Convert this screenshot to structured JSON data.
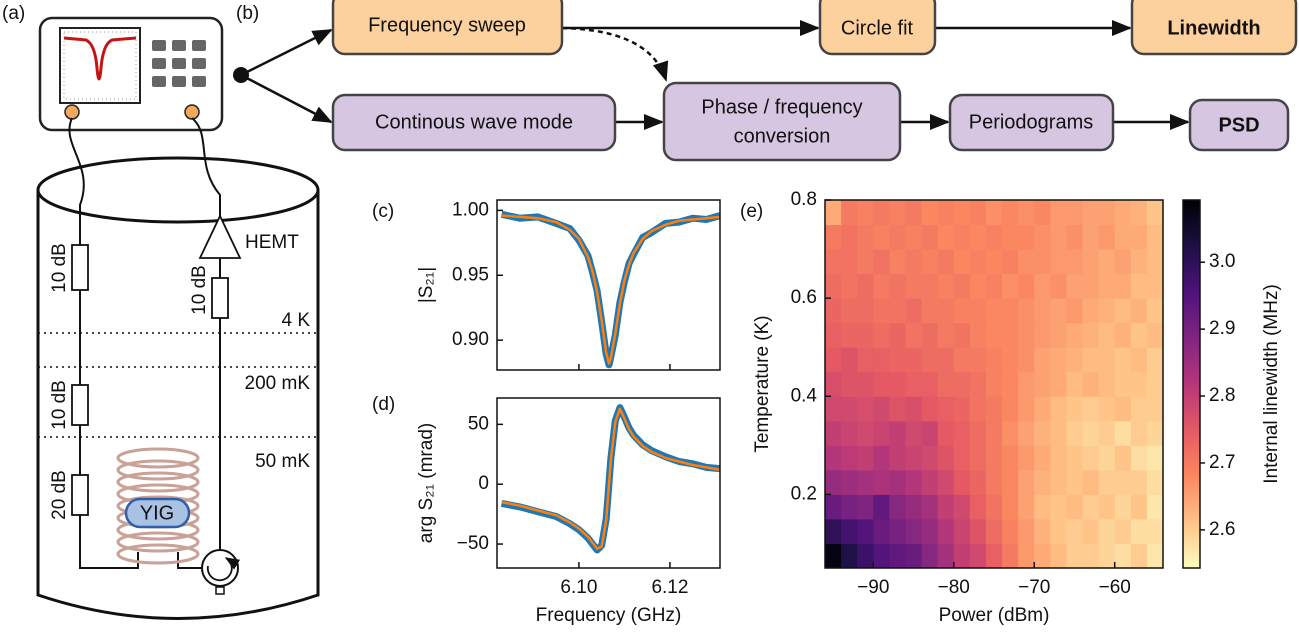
{
  "panel_labels": [
    "(a)",
    "(b)",
    "(c)",
    "(d)",
    "(e)"
  ],
  "setup": {
    "attenuators": [
      "10 dB",
      "10 dB",
      "20 dB",
      "10 dB"
    ],
    "amplifier": "HEMT",
    "stages": [
      "4 K",
      "200 mK",
      "50 mK"
    ],
    "sample": "YIG"
  },
  "flow": {
    "nodes": [
      {
        "label": "Frequency sweep"
      },
      {
        "label": "Circle fit"
      },
      {
        "label": "Linewidth"
      },
      {
        "label": "Continous wave mode"
      },
      {
        "lines": [
          "Phase / frequency",
          "conversion"
        ]
      },
      {
        "label": "Periodograms"
      },
      {
        "label": "PSD"
      }
    ]
  },
  "chart_data": [
    {
      "type": "line",
      "ylabel": "|S₂₁|",
      "x": [
        6.083,
        6.087,
        6.091,
        6.095,
        6.098,
        6.1,
        6.102,
        6.103,
        6.104,
        6.105,
        6.106,
        6.1066,
        6.107,
        6.108,
        6.109,
        6.11,
        6.111,
        6.112,
        6.114,
        6.116,
        6.119,
        6.122,
        6.125,
        6.128,
        6.131
      ],
      "xlim": [
        6.082,
        6.131
      ],
      "ylim": [
        0.877,
        1.008
      ],
      "yticks": [
        {
          "value": 0.9,
          "label": "0.90"
        },
        0.95,
        {
          "value": 1,
          "label": "1.00"
        }
      ],
      "series": [
        {
          "color": "#1f77b4",
          "values": [
            0.997,
            0.994,
            0.995,
            0.99,
            0.986,
            0.977,
            0.965,
            0.952,
            0.938,
            0.914,
            0.889,
            0.881,
            0.887,
            0.904,
            0.929,
            0.945,
            0.959,
            0.966,
            0.979,
            0.983,
            0.99,
            0.991,
            0.994,
            0.993,
            0.996
          ]
        },
        {
          "color": "#ff7f0e",
          "values": [
            0.996,
            0.995,
            0.994,
            0.991,
            0.985,
            0.978,
            0.964,
            0.953,
            0.937,
            0.915,
            0.89,
            0.882,
            0.886,
            0.905,
            0.928,
            0.946,
            0.958,
            0.967,
            0.978,
            0.984,
            0.989,
            0.992,
            0.993,
            0.994,
            0.995
          ]
        }
      ]
    },
    {
      "type": "line",
      "ylabel": "arg S₂₁ (mrad)",
      "xlabel": "Frequency (GHz)",
      "x": [
        6.083,
        6.087,
        6.091,
        6.095,
        6.098,
        6.1,
        6.102,
        6.103,
        6.104,
        6.105,
        6.106,
        6.1066,
        6.107,
        6.108,
        6.109,
        6.11,
        6.111,
        6.112,
        6.114,
        6.116,
        6.119,
        6.122,
        6.125,
        6.128,
        6.131
      ],
      "xlim": [
        6.082,
        6.131
      ],
      "ylim": [
        -70,
        72
      ],
      "xticks": [
        {
          "value": 6.1,
          "label": "6.10"
        },
        {
          "value": 6.12,
          "label": "6.12"
        }
      ],
      "yticks": [
        {
          "value": -50,
          "label": "−50"
        },
        0,
        50
      ],
      "series": [
        {
          "color": "#1f77b4",
          "values": [
            -16,
            -19,
            -23,
            -27,
            -33,
            -38,
            -45,
            -50,
            -55,
            -51,
            -29,
            1,
            21,
            53,
            64,
            56,
            47,
            41,
            33,
            28,
            23,
            19,
            17,
            14,
            13
          ]
        },
        {
          "color": "#ff7f0e",
          "values": [
            -15,
            -18,
            -22,
            -26,
            -32,
            -37,
            -44,
            -49,
            -54,
            -52,
            -30,
            0,
            20,
            52,
            63,
            55,
            46,
            40,
            32,
            27,
            22,
            19,
            16,
            14,
            12
          ]
        }
      ]
    },
    {
      "type": "heatmap",
      "xlabel": "Power (dBm)",
      "ylabel": "Temperature (K)",
      "colormap": "magma_r",
      "x": [
        -95,
        -93,
        -91,
        -89,
        -87,
        -85,
        -83,
        -81,
        -79,
        -77,
        -75,
        -73,
        -71,
        -69,
        -67,
        -65,
        -63,
        -61,
        -59,
        -57,
        -55
      ],
      "y": [
        0.075,
        0.125,
        0.175,
        0.225,
        0.275,
        0.325,
        0.375,
        0.425,
        0.475,
        0.525,
        0.575,
        0.625,
        0.675,
        0.725,
        0.775
      ],
      "xlim": [
        -96,
        -54
      ],
      "ylim": [
        0.05,
        0.8
      ],
      "xticks": [
        {
          "value": -90,
          "label": "−90"
        },
        {
          "value": -80,
          "label": "−80"
        },
        {
          "value": -70,
          "label": "−70"
        },
        {
          "value": -60,
          "label": "−60"
        }
      ],
      "yticks": [
        0.2,
        0.4,
        0.6,
        0.8
      ],
      "values": [
        [
          3.08,
          3.02,
          2.98,
          2.95,
          2.93,
          2.92,
          2.88,
          2.84,
          2.8,
          2.78,
          2.74,
          2.7,
          2.66,
          2.64,
          2.62,
          2.6,
          2.6,
          2.59,
          2.58,
          2.6,
          2.57
        ],
        [
          3.0,
          2.97,
          2.95,
          2.92,
          2.9,
          2.88,
          2.86,
          2.82,
          2.79,
          2.76,
          2.72,
          2.69,
          2.66,
          2.63,
          2.61,
          2.6,
          2.61,
          2.59,
          2.6,
          2.58,
          2.58
        ],
        [
          2.92,
          2.9,
          2.89,
          2.93,
          2.88,
          2.86,
          2.84,
          2.8,
          2.78,
          2.74,
          2.71,
          2.68,
          2.65,
          2.62,
          2.61,
          2.62,
          2.6,
          2.61,
          2.59,
          2.61,
          2.57
        ],
        [
          2.86,
          2.85,
          2.84,
          2.83,
          2.84,
          2.82,
          2.8,
          2.78,
          2.75,
          2.73,
          2.7,
          2.68,
          2.65,
          2.63,
          2.62,
          2.61,
          2.62,
          2.6,
          2.6,
          2.6,
          2.58
        ],
        [
          2.82,
          2.81,
          2.8,
          2.82,
          2.8,
          2.79,
          2.78,
          2.76,
          2.74,
          2.72,
          2.7,
          2.68,
          2.66,
          2.64,
          2.62,
          2.61,
          2.6,
          2.59,
          2.61,
          2.58,
          2.57
        ],
        [
          2.8,
          2.79,
          2.78,
          2.79,
          2.8,
          2.78,
          2.79,
          2.75,
          2.74,
          2.72,
          2.7,
          2.67,
          2.65,
          2.63,
          2.62,
          2.6,
          2.59,
          2.6,
          2.58,
          2.6,
          2.59
        ],
        [
          2.78,
          2.78,
          2.77,
          2.78,
          2.76,
          2.77,
          2.75,
          2.74,
          2.73,
          2.71,
          2.7,
          2.68,
          2.66,
          2.64,
          2.62,
          2.61,
          2.6,
          2.61,
          2.62,
          2.6,
          2.6
        ],
        [
          2.77,
          2.76,
          2.76,
          2.75,
          2.75,
          2.74,
          2.74,
          2.72,
          2.72,
          2.71,
          2.69,
          2.68,
          2.66,
          2.65,
          2.64,
          2.62,
          2.63,
          2.62,
          2.61,
          2.61,
          2.6
        ],
        [
          2.75,
          2.76,
          2.74,
          2.74,
          2.73,
          2.73,
          2.72,
          2.72,
          2.7,
          2.7,
          2.69,
          2.68,
          2.67,
          2.65,
          2.64,
          2.63,
          2.62,
          2.62,
          2.61,
          2.62,
          2.6
        ],
        [
          2.74,
          2.73,
          2.73,
          2.72,
          2.73,
          2.71,
          2.72,
          2.7,
          2.71,
          2.69,
          2.68,
          2.68,
          2.67,
          2.66,
          2.65,
          2.64,
          2.63,
          2.62,
          2.63,
          2.61,
          2.62
        ],
        [
          2.73,
          2.72,
          2.72,
          2.71,
          2.71,
          2.72,
          2.7,
          2.7,
          2.69,
          2.69,
          2.68,
          2.68,
          2.67,
          2.66,
          2.65,
          2.66,
          2.64,
          2.63,
          2.62,
          2.63,
          2.61
        ],
        [
          2.72,
          2.71,
          2.72,
          2.7,
          2.71,
          2.7,
          2.7,
          2.69,
          2.7,
          2.68,
          2.69,
          2.67,
          2.68,
          2.66,
          2.67,
          2.65,
          2.65,
          2.64,
          2.64,
          2.62,
          2.62
        ],
        [
          2.71,
          2.71,
          2.7,
          2.71,
          2.69,
          2.7,
          2.69,
          2.7,
          2.68,
          2.69,
          2.68,
          2.69,
          2.67,
          2.67,
          2.66,
          2.66,
          2.65,
          2.64,
          2.65,
          2.63,
          2.62
        ],
        [
          2.7,
          2.71,
          2.7,
          2.69,
          2.7,
          2.69,
          2.7,
          2.68,
          2.69,
          2.68,
          2.69,
          2.68,
          2.68,
          2.67,
          2.66,
          2.67,
          2.65,
          2.66,
          2.64,
          2.64,
          2.62
        ],
        [
          2.64,
          2.7,
          2.69,
          2.7,
          2.69,
          2.7,
          2.68,
          2.69,
          2.68,
          2.69,
          2.67,
          2.68,
          2.67,
          2.68,
          2.66,
          2.66,
          2.65,
          2.65,
          2.64,
          2.63,
          2.61
        ]
      ],
      "colorbar": {
        "label": "Internal linewidth (MHz)",
        "clim": [
          2.543,
          3.093
        ],
        "ticks": [
          2.6,
          2.7,
          2.8,
          2.9,
          {
            "value": 3,
            "label": "3.0"
          }
        ]
      }
    }
  ]
}
